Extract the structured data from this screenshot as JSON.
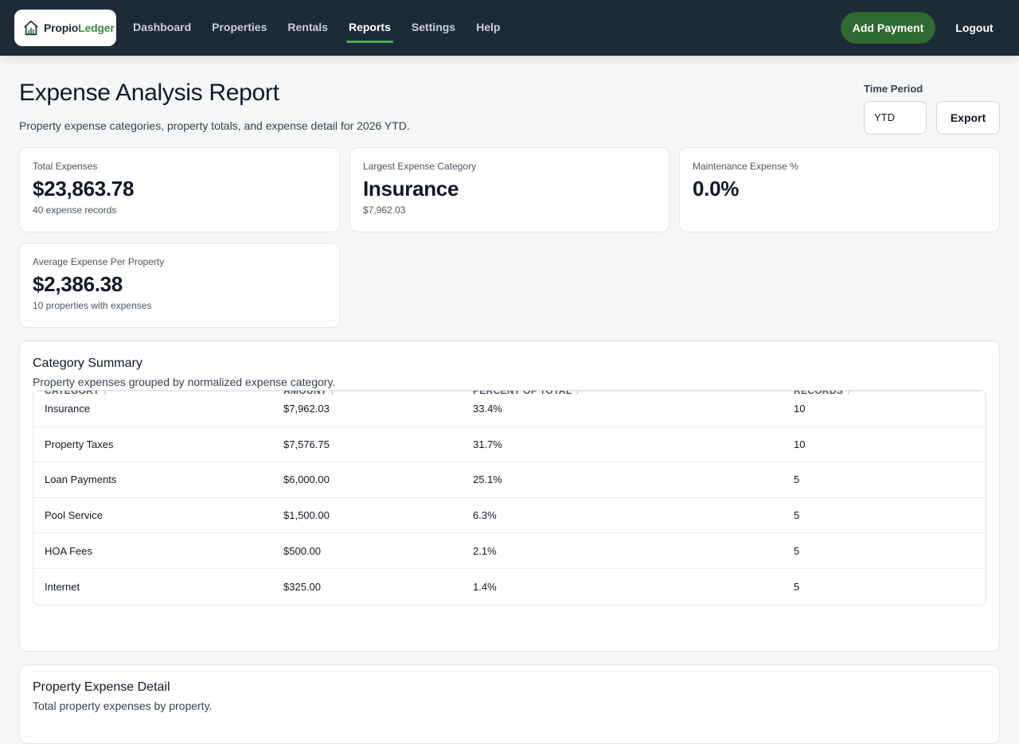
{
  "nav": {
    "brand_left": "Propio",
    "brand_right": "Ledger",
    "items": [
      {
        "label": "Dashboard",
        "active": false
      },
      {
        "label": "Properties",
        "active": false
      },
      {
        "label": "Rentals",
        "active": false
      },
      {
        "label": "Reports",
        "active": true
      },
      {
        "label": "Settings",
        "active": false
      },
      {
        "label": "Help",
        "active": false
      }
    ],
    "add_payment": "Add Payment",
    "logout": "Logout"
  },
  "header": {
    "title": "Expense Analysis Report",
    "subtitle": "Property expense categories, property totals, and expense detail for 2026 YTD.",
    "period_label": "Time Period",
    "period_value": "YTD",
    "export": "Export"
  },
  "kpis": [
    {
      "label": "Total Expenses",
      "value": "$23,863.78",
      "note": "40 expense records"
    },
    {
      "label": "Largest Expense Category",
      "value": "Insurance",
      "note": "$7,962.03"
    },
    {
      "label": "Maintenance Expense %",
      "value": "0.0%",
      "note": ""
    },
    {
      "label": "Average Expense Per Property",
      "value": "$2,386.38",
      "note": "10 properties with expenses"
    }
  ],
  "category_summary": {
    "title": "Category Summary",
    "description": "Property expenses grouped by normalized expense category.",
    "columns": [
      "Category",
      "Amount",
      "Percent of Total",
      "Records"
    ],
    "sort_glyph": "↕",
    "rows": [
      [
        "Insurance",
        "$7,962.03",
        "33.4%",
        "10"
      ],
      [
        "Property Taxes",
        "$7,576.75",
        "31.7%",
        "10"
      ],
      [
        "Loan Payments",
        "$6,000.00",
        "25.1%",
        "5"
      ],
      [
        "Pool Service",
        "$1,500.00",
        "6.3%",
        "5"
      ],
      [
        "HOA Fees",
        "$500.00",
        "2.1%",
        "5"
      ],
      [
        "Internet",
        "$325.00",
        "1.4%",
        "5"
      ]
    ]
  },
  "property_detail": {
    "title": "Property Expense Detail",
    "description": "Total property expenses by property."
  },
  "colors": {
    "topbar": "#1e2a38",
    "accent": "#4caf50",
    "primary_button": "#2e6b30"
  }
}
